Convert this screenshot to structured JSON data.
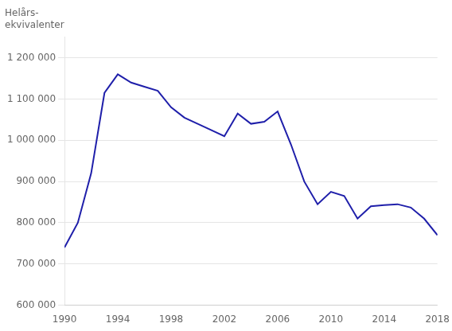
{
  "chart_data": {
    "type": "line",
    "ylabel": [
      "Helårs-",
      "ekvivalenter"
    ],
    "x": [
      1990,
      1991,
      1992,
      1993,
      1994,
      1995,
      1996,
      1997,
      1998,
      1999,
      2000,
      2001,
      2002,
      2003,
      2004,
      2005,
      2006,
      2007,
      2008,
      2009,
      2010,
      2011,
      2012,
      2013,
      2014,
      2015,
      2016,
      2017,
      2018
    ],
    "values": [
      740000,
      800000,
      920000,
      1115000,
      1160000,
      1140000,
      1130000,
      1120000,
      1080000,
      1055000,
      1040000,
      1025000,
      1010000,
      1065000,
      1040000,
      1045000,
      1070000,
      990000,
      900000,
      845000,
      875000,
      865000,
      810000,
      840000,
      843000,
      845000,
      837000,
      810000,
      770000
    ],
    "color": "#1f1faa",
    "xlim": [
      1990,
      2018
    ],
    "xticks": [
      1990,
      1994,
      1998,
      2002,
      2006,
      2010,
      2014,
      2018
    ],
    "ylim": [
      600000,
      1250000
    ],
    "yticks": [
      {
        "value": 600000,
        "label": "600 000"
      },
      {
        "value": 700000,
        "label": "700 000"
      },
      {
        "value": 800000,
        "label": "800 000"
      },
      {
        "value": 900000,
        "label": "900 000"
      },
      {
        "value": 1000000,
        "label": "1 000 000"
      },
      {
        "value": 1100000,
        "label": "1 100 000"
      },
      {
        "value": 1200000,
        "label": "1 200 000"
      }
    ],
    "grid": "y"
  }
}
